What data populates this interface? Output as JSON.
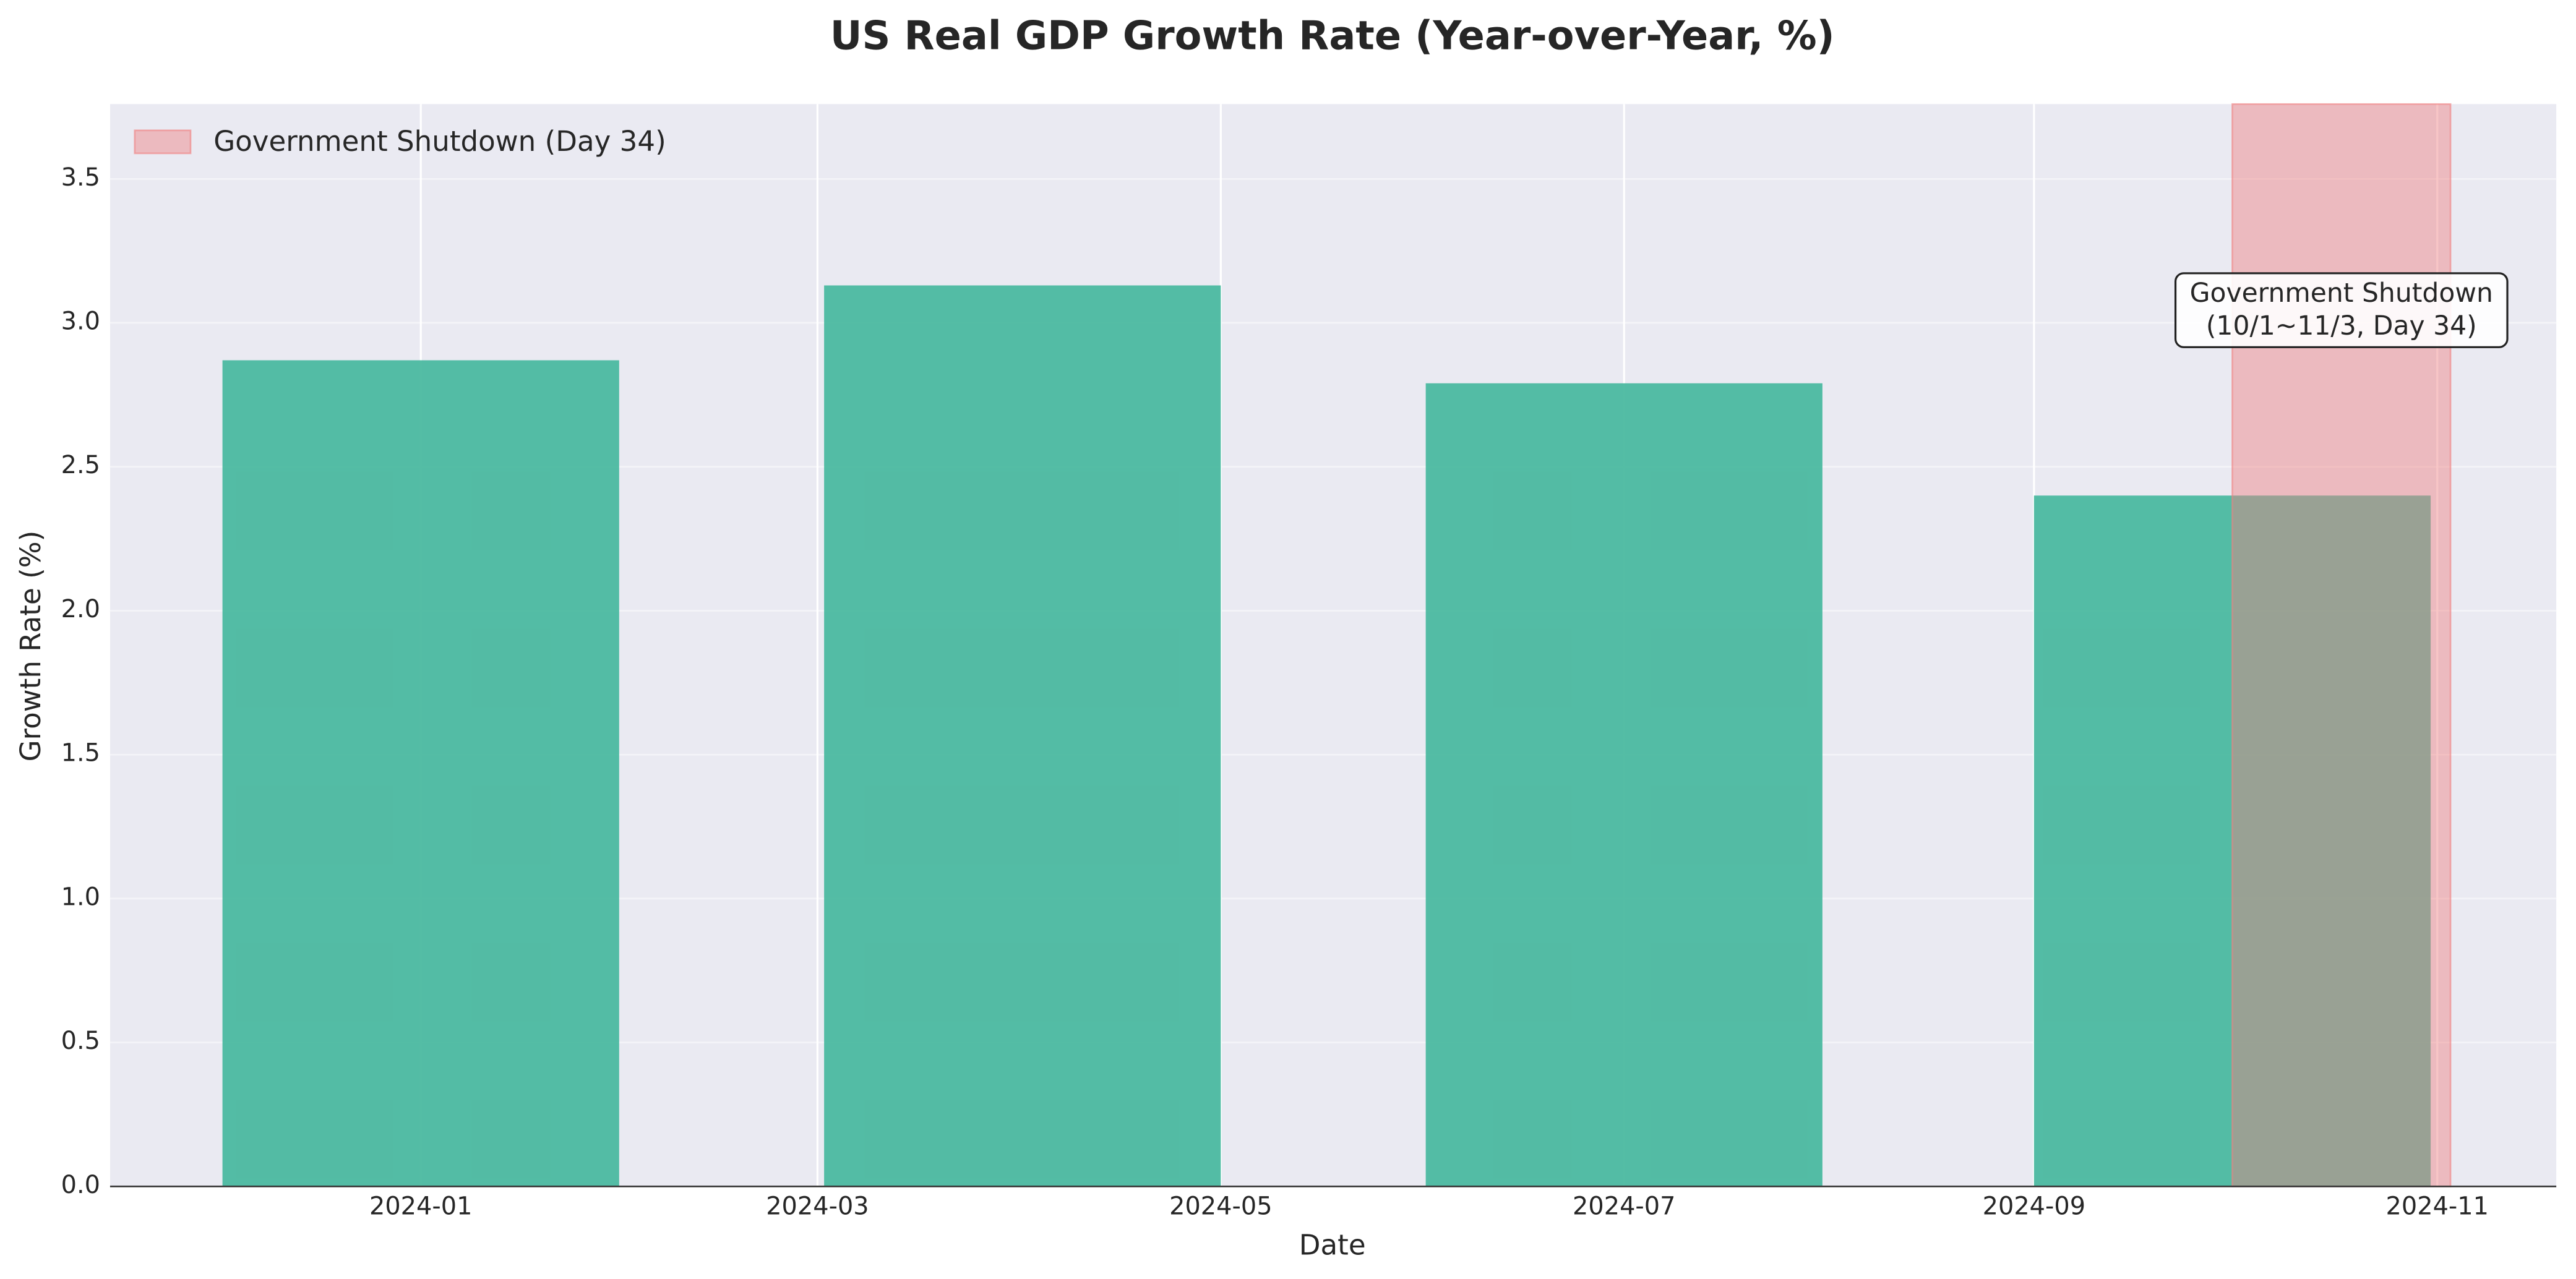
{
  "chart_data": {
    "type": "bar",
    "title": "US Real GDP Growth Rate (Year-over-Year, %)",
    "x_label": "Date",
    "y_label": "Growth Rate (%)",
    "x": [
      "2024-01",
      "2024-04",
      "2024-07",
      "2024-10"
    ],
    "values": [
      2.87,
      3.13,
      2.79,
      2.4
    ],
    "color": "#4bb9a0",
    "xlim": [
      "2023-11-15",
      "2024-11-19"
    ],
    "xticks": [
      "2024-01",
      "2024-03",
      "2024-05",
      "2024-07",
      "2024-09",
      "2024-11"
    ],
    "ylim": [
      0,
      3.76
    ],
    "yticks": [
      {
        "value": 0,
        "label": "0.0"
      },
      {
        "value": 0.5,
        "label": "0.5"
      },
      {
        "value": 1,
        "label": "1.0"
      },
      {
        "value": 1.5,
        "label": "1.5"
      },
      {
        "value": 2,
        "label": "2.0"
      },
      {
        "value": 2.5,
        "label": "2.5"
      },
      {
        "value": 3,
        "label": "3.0"
      },
      {
        "value": 3.5,
        "label": "3.5"
      }
    ],
    "grid": true,
    "shaded_span": {
      "name": "Government Shutdown (Day 34)",
      "start": "2024-10-01",
      "end": "2024-11-03",
      "color": "#f08080"
    },
    "legend": "upper left",
    "annotation": {
      "lines": [
        "Government Shutdown",
        "(10/1~11/3, Day 34)"
      ]
    }
  }
}
